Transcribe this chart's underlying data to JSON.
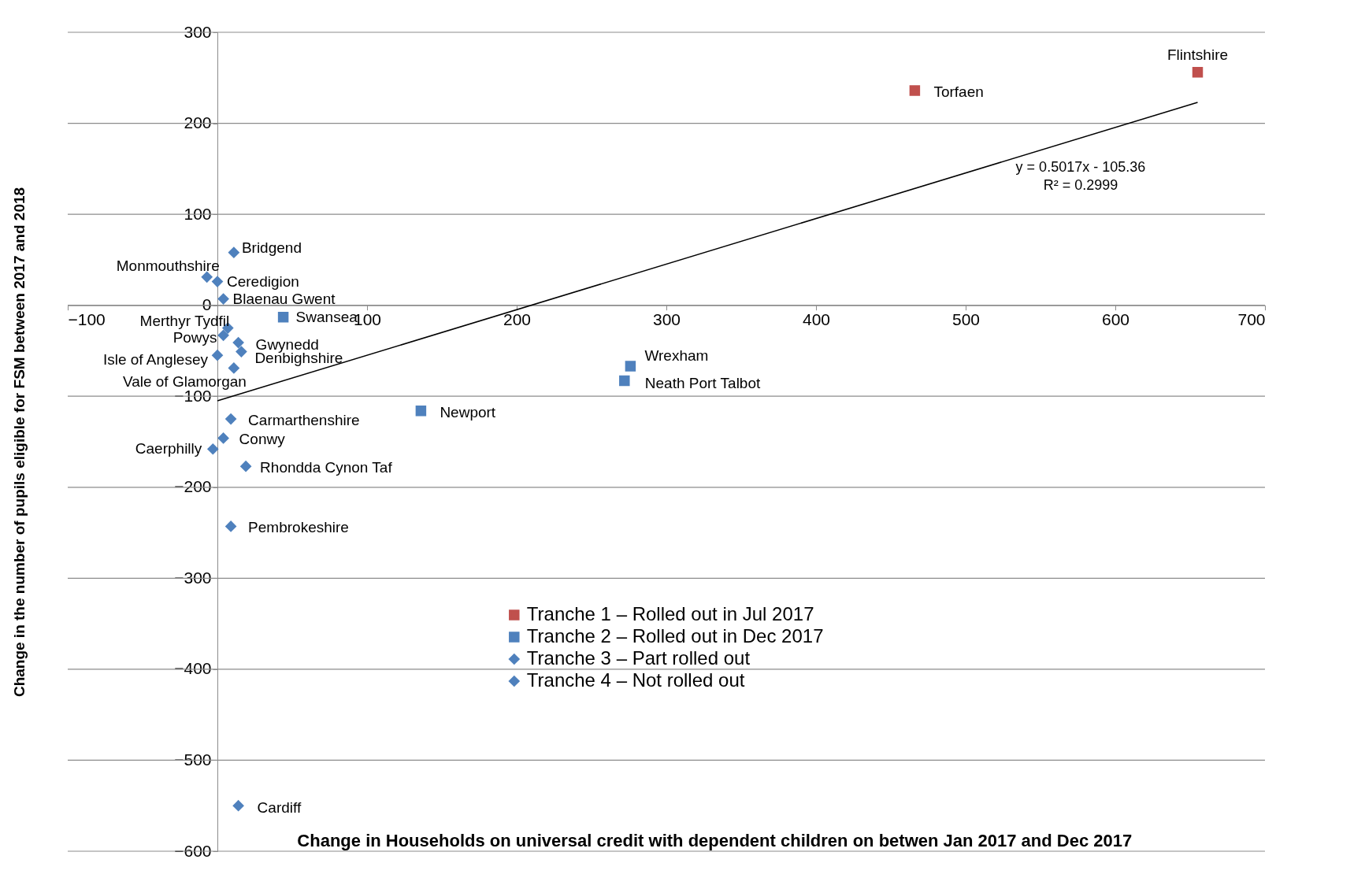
{
  "chart_data": {
    "type": "scatter",
    "xlabel": "Change in Households on universal credit with dependent children on betwen Jan 2017 and Dec 2017",
    "ylabel": "Change in the number of pupils eligible for FSM between 2017 and 2018",
    "xlim": [
      -100,
      700
    ],
    "xticks": [
      -100,
      100,
      200,
      300,
      400,
      500,
      600,
      700
    ],
    "ylim": [
      -600,
      300
    ],
    "yticks": [
      -600,
      -500,
      -400,
      -300,
      -200,
      -100,
      0,
      100,
      200,
      300
    ],
    "grid": "y",
    "legend": "bottom",
    "series": [
      {
        "name": "Tranche 1 – Rolled out in Jul 2017",
        "color": "#c0504d",
        "marker": "square",
        "x": [
          655,
          466
        ],
        "values": [
          256,
          236
        ]
      },
      {
        "name": "Tranche 2 – Rolled out in Dec 2017",
        "color": "#4f81bd",
        "marker": "square",
        "x": [
          44,
          276,
          272,
          136
        ],
        "values": [
          -13,
          -67,
          -83,
          -116
        ]
      },
      {
        "name": "Tranche 3 – Part rolled out",
        "color": "#4f81bd",
        "marker": "diamond",
        "x": [
          11,
          -7,
          0,
          4,
          7,
          4,
          14,
          16,
          0,
          11,
          9,
          4,
          -3,
          19,
          9,
          14
        ],
        "values": [
          58,
          31,
          26,
          7,
          -25,
          -33,
          -41,
          -51,
          -55,
          -69,
          -125,
          -146,
          -158,
          -177,
          -243,
          -550
        ]
      },
      {
        "name": "Tranche 4 – Not rolled out",
        "color": "#4f81bd",
        "marker": "diamond"
      },
      {
        "type": "line",
        "color": "#000000",
        "marker": "none",
        "x": [
          0,
          655
        ],
        "values": [
          -105,
          223
        ]
      }
    ],
    "annotations": [
      {
        "text": "Flintshire",
        "x": 655,
        "y": 256
      },
      {
        "text": "Torfaen",
        "x": 466,
        "y": 236
      },
      {
        "text": "Bridgend",
        "x": 11,
        "y": 58
      },
      {
        "text": "Monmouthshire",
        "x": -7,
        "y": 31
      },
      {
        "text": "Ceredigion",
        "x": 0,
        "y": 26
      },
      {
        "text": "Blaenau  Gwent",
        "x": 4,
        "y": 7
      },
      {
        "text": "Swansea",
        "x": 44,
        "y": -13
      },
      {
        "text": "Merthyr  Tydfil",
        "x": 7,
        "y": -25
      },
      {
        "text": "Powys",
        "x": 4,
        "y": -33
      },
      {
        "text": "Gwynedd",
        "x": 14,
        "y": -41
      },
      {
        "text": "Denbighshire",
        "x": 16,
        "y": -51
      },
      {
        "text": "Isle of Anglesey",
        "x": 0,
        "y": -55
      },
      {
        "text": "Vale of Glamorgan",
        "x": 11,
        "y": -69
      },
      {
        "text": "Wrexham",
        "x": 276,
        "y": -67
      },
      {
        "text": "Neath  Port  Talbot",
        "x": 272,
        "y": -83
      },
      {
        "text": "Newport",
        "x": 136,
        "y": -116
      },
      {
        "text": "Carmarthenshire",
        "x": 9,
        "y": -125
      },
      {
        "text": "Conwy",
        "x": 4,
        "y": -146
      },
      {
        "text": "Caerphilly",
        "x": -3,
        "y": -158
      },
      {
        "text": "Rhondda  Cynon  Taf",
        "x": 19,
        "y": -177
      },
      {
        "text": "Pembrokeshire",
        "x": 9,
        "y": -243
      },
      {
        "text": "Cardiff",
        "x": 14,
        "y": -550
      },
      "y = 0.5017x  - 105.36",
      "R² = 0.2999"
    ]
  }
}
